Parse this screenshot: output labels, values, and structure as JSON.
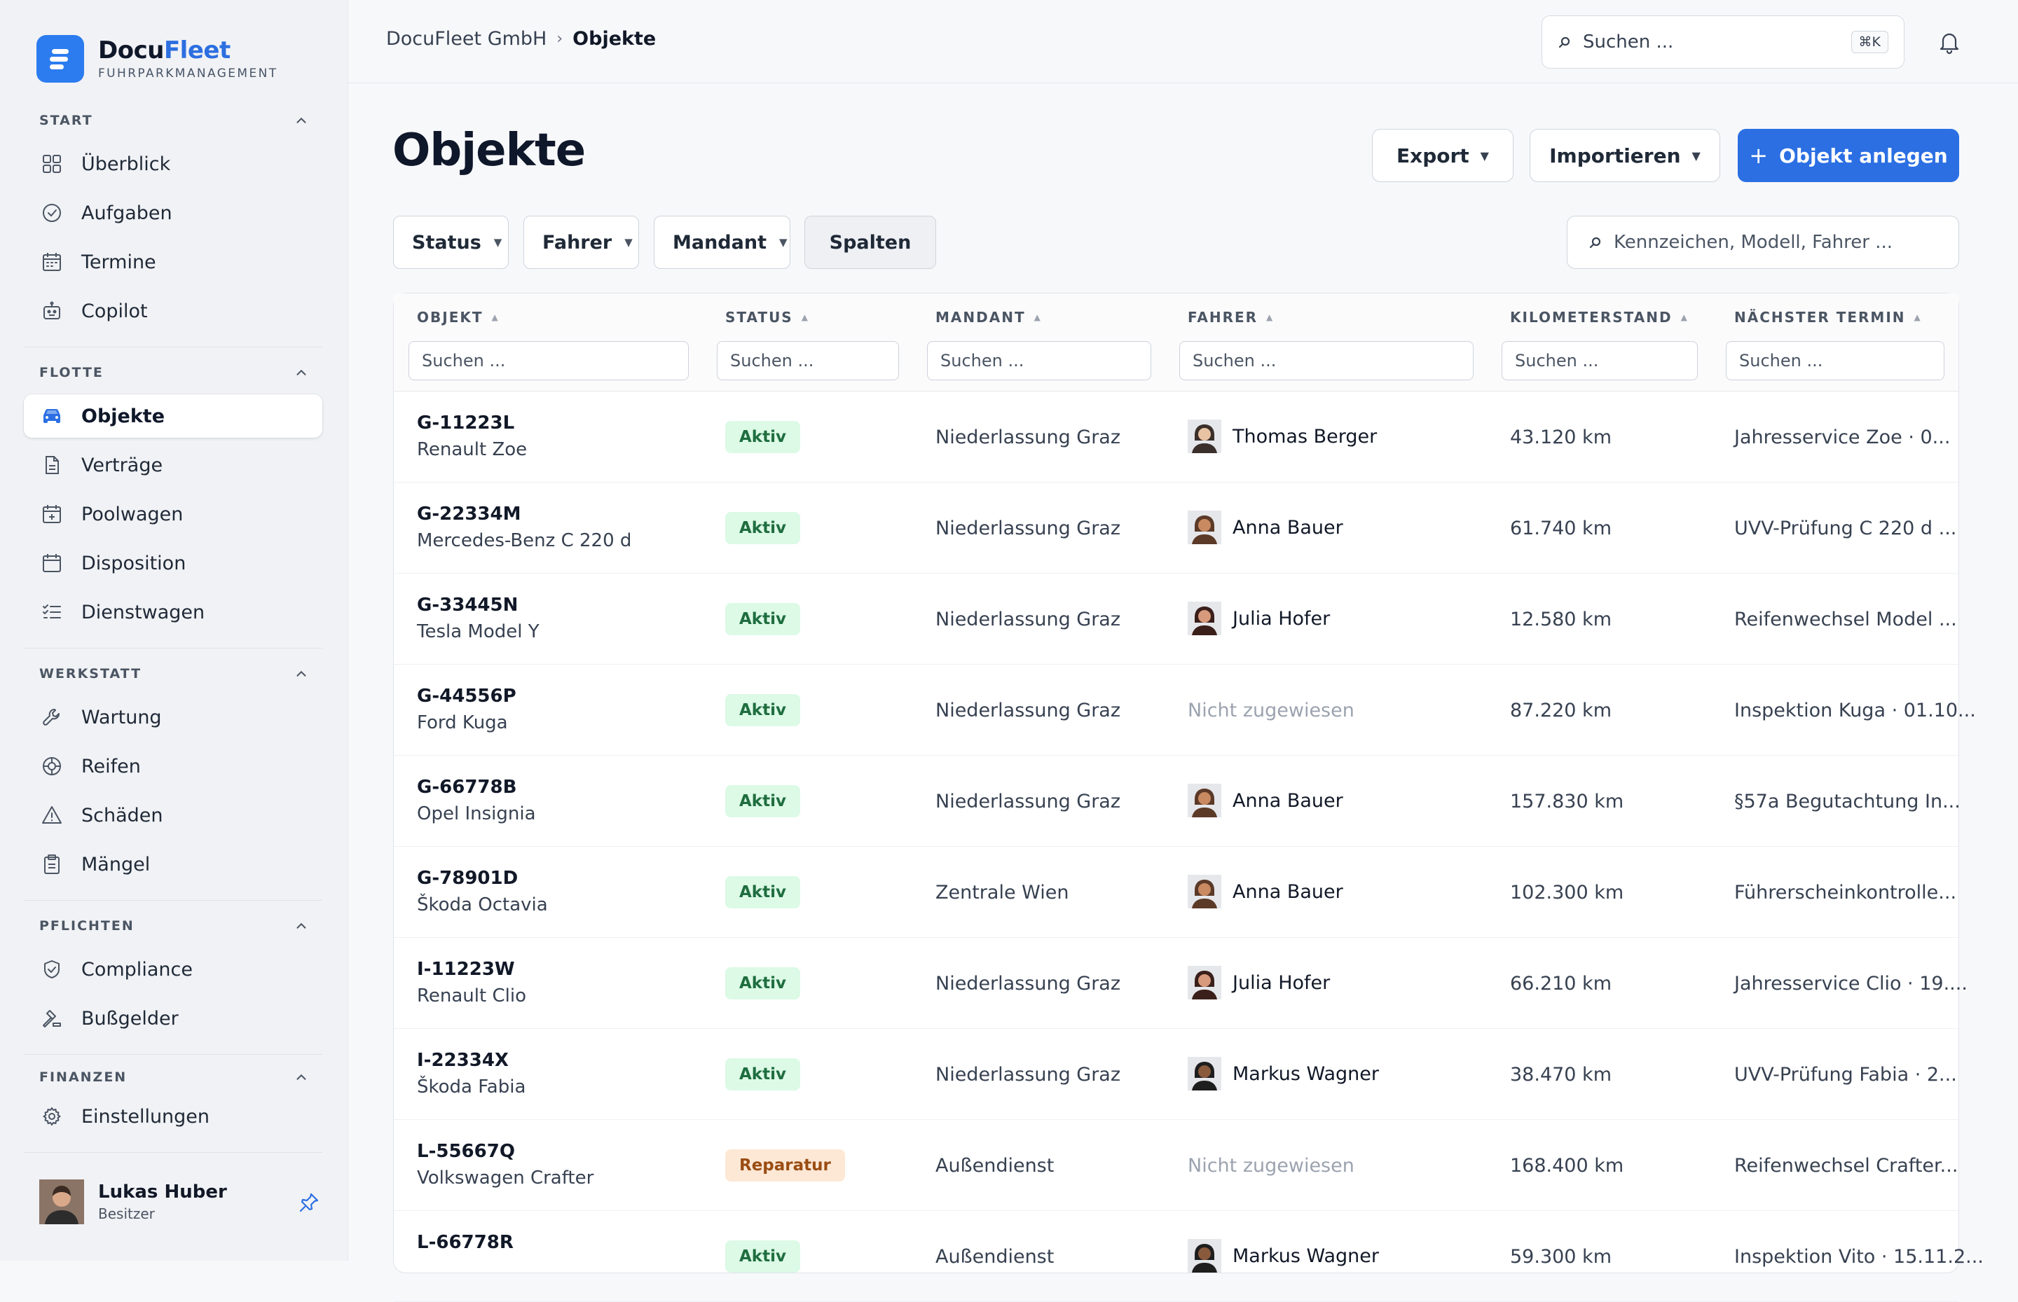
{
  "brand": {
    "name_part1": "Docu",
    "name_part2": "Fleet",
    "subtitle": "FUHRPARKMANAGEMENT"
  },
  "sidebar": {
    "sections": [
      {
        "title": "START",
        "items": [
          "Überblick",
          "Aufgaben",
          "Termine",
          "Copilot"
        ]
      },
      {
        "title": "FLOTTE",
        "items": [
          "Objekte",
          "Verträge",
          "Poolwagen",
          "Disposition",
          "Dienstwagen"
        ]
      },
      {
        "title": "WERKSTATT",
        "items": [
          "Wartung",
          "Reifen",
          "Schäden",
          "Mängel"
        ]
      },
      {
        "title": "PFLICHTEN",
        "items": [
          "Compliance",
          "Bußgelder"
        ]
      },
      {
        "title": "FINANZEN",
        "items": [
          "Einstellungen"
        ]
      }
    ],
    "active_item": "Objekte",
    "user": {
      "name": "Lukas Huber",
      "role": "Besitzer"
    }
  },
  "topbar": {
    "breadcrumb": [
      "DocuFleet GmbH",
      "Objekte"
    ],
    "search_placeholder": "Suchen ...",
    "shortcut": "⌘K"
  },
  "page": {
    "title": "Objekte",
    "export_label": "Export",
    "import_label": "Importieren",
    "create_label": "Objekt anlegen",
    "filters": [
      "Status",
      "Fahrer",
      "Mandant"
    ],
    "columns_label": "Spalten",
    "table_search_placeholder": "Kennzeichen, Modell, Fahrer ..."
  },
  "table": {
    "columns": [
      "OBJEKT",
      "STATUS",
      "MANDANT",
      "FAHRER",
      "KILOMETERSTAND",
      "NÄCHSTER TERMIN"
    ],
    "filter_placeholder": "Suchen ...",
    "rows": [
      {
        "plate": "G-11223L",
        "model": "Renault Zoe",
        "status": "Aktiv",
        "mandant": "Niederlassung Graz",
        "driver": "Thomas Berger",
        "km": "43.120 km",
        "next": "Jahresservice Zoe · 0..."
      },
      {
        "plate": "G-22334M",
        "model": "Mercedes-Benz C 220 d",
        "status": "Aktiv",
        "mandant": "Niederlassung Graz",
        "driver": "Anna Bauer",
        "km": "61.740 km",
        "next": "UVV-Prüfung C 220 d ..."
      },
      {
        "plate": "G-33445N",
        "model": "Tesla Model Y",
        "status": "Aktiv",
        "mandant": "Niederlassung Graz",
        "driver": "Julia Hofer",
        "km": "12.580 km",
        "next": "Reifenwechsel Model ..."
      },
      {
        "plate": "G-44556P",
        "model": "Ford Kuga",
        "status": "Aktiv",
        "mandant": "Niederlassung Graz",
        "driver": "Nicht zugewiesen",
        "km": "87.220 km",
        "next": "Inspektion Kuga · 01.10..."
      },
      {
        "plate": "G-66778B",
        "model": "Opel Insignia",
        "status": "Aktiv",
        "mandant": "Niederlassung Graz",
        "driver": "Anna Bauer",
        "km": "157.830 km",
        "next": "§57a Begutachtung In..."
      },
      {
        "plate": "G-78901D",
        "model": "Škoda Octavia",
        "status": "Aktiv",
        "mandant": "Zentrale Wien",
        "driver": "Anna Bauer",
        "km": "102.300 km",
        "next": "Führerscheinkontrolle..."
      },
      {
        "plate": "I-11223W",
        "model": "Renault Clio",
        "status": "Aktiv",
        "mandant": "Niederlassung Graz",
        "driver": "Julia Hofer",
        "km": "66.210 km",
        "next": "Jahresservice Clio · 19...."
      },
      {
        "plate": "I-22334X",
        "model": "Škoda Fabia",
        "status": "Aktiv",
        "mandant": "Niederlassung Graz",
        "driver": "Markus Wagner",
        "km": "38.470 km",
        "next": "UVV-Prüfung Fabia · 2..."
      },
      {
        "plate": "L-55667Q",
        "model": "Volkswagen Crafter",
        "status": "Reparatur",
        "mandant": "Außendienst",
        "driver": "Nicht zugewiesen",
        "km": "168.400 km",
        "next": "Reifenwechsel Crafter..."
      },
      {
        "plate": "L-66778R",
        "model": "",
        "status": "Aktiv",
        "mandant": "Außendienst",
        "driver": "Markus Wagner",
        "km": "59.300 km",
        "next": "Inspektion Vito · 15.11.2..."
      }
    ]
  },
  "colors": {
    "primary": "#2b6fe3",
    "active_badge_bg": "#dcfae6",
    "repair_badge_bg": "#fde8d6"
  }
}
